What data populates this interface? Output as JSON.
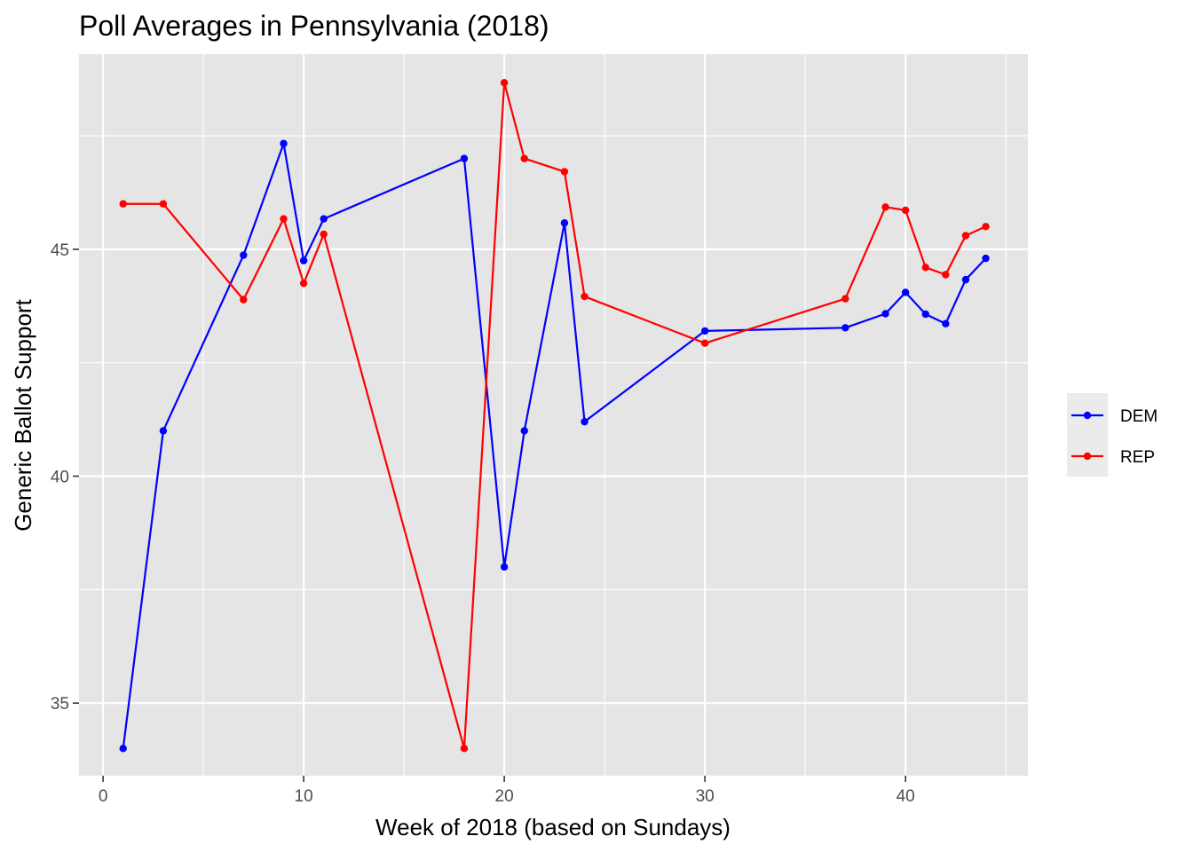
{
  "chart_data": {
    "type": "line",
    "title": "Poll Averages in Pennsylvania (2018)",
    "xlabel": "Week of 2018 (based on Sundays)",
    "ylabel": "Generic Ballot Support",
    "xlim": [
      -1.2,
      46.1
    ],
    "ylim": [
      33.4,
      49.3
    ],
    "x_ticks": [
      0,
      10,
      20,
      30,
      40
    ],
    "x_minor_ticks": [
      5,
      15,
      25,
      35,
      45
    ],
    "y_ticks": [
      35,
      40,
      45
    ],
    "y_minor_ticks": [
      37.5,
      42.5,
      47.5
    ],
    "grid": true,
    "legend_position": "right",
    "series": [
      {
        "name": "DEM",
        "color": "#0000ff",
        "points": [
          {
            "x": 1,
            "y": 34.0
          },
          {
            "x": 3,
            "y": 41.0
          },
          {
            "x": 7,
            "y": 44.87
          },
          {
            "x": 9,
            "y": 47.33
          },
          {
            "x": 10,
            "y": 44.75
          },
          {
            "x": 11,
            "y": 45.67
          },
          {
            "x": 18,
            "y": 47.0
          },
          {
            "x": 20,
            "y": 38.0
          },
          {
            "x": 21,
            "y": 41.0
          },
          {
            "x": 23,
            "y": 45.58
          },
          {
            "x": 24,
            "y": 41.2
          },
          {
            "x": 30,
            "y": 43.2
          },
          {
            "x": 37,
            "y": 43.27
          },
          {
            "x": 39,
            "y": 43.58
          },
          {
            "x": 40,
            "y": 44.05
          },
          {
            "x": 41,
            "y": 43.57
          },
          {
            "x": 42,
            "y": 43.36
          },
          {
            "x": 43,
            "y": 44.33
          },
          {
            "x": 44,
            "y": 44.8
          }
        ]
      },
      {
        "name": "REP",
        "color": "#ff0000",
        "points": [
          {
            "x": 1,
            "y": 46.0
          },
          {
            "x": 3,
            "y": 46.0
          },
          {
            "x": 7,
            "y": 43.89
          },
          {
            "x": 9,
            "y": 45.67
          },
          {
            "x": 10,
            "y": 44.25
          },
          {
            "x": 11,
            "y": 45.33
          },
          {
            "x": 18,
            "y": 34.0
          },
          {
            "x": 20,
            "y": 48.67
          },
          {
            "x": 21,
            "y": 47.0
          },
          {
            "x": 23,
            "y": 46.71
          },
          {
            "x": 24,
            "y": 43.96
          },
          {
            "x": 30,
            "y": 42.93
          },
          {
            "x": 37,
            "y": 43.91
          },
          {
            "x": 39,
            "y": 45.93
          },
          {
            "x": 40,
            "y": 45.86
          },
          {
            "x": 41,
            "y": 44.6
          },
          {
            "x": 42,
            "y": 44.44
          },
          {
            "x": 43,
            "y": 45.3
          },
          {
            "x": 44,
            "y": 45.5
          }
        ]
      }
    ]
  }
}
